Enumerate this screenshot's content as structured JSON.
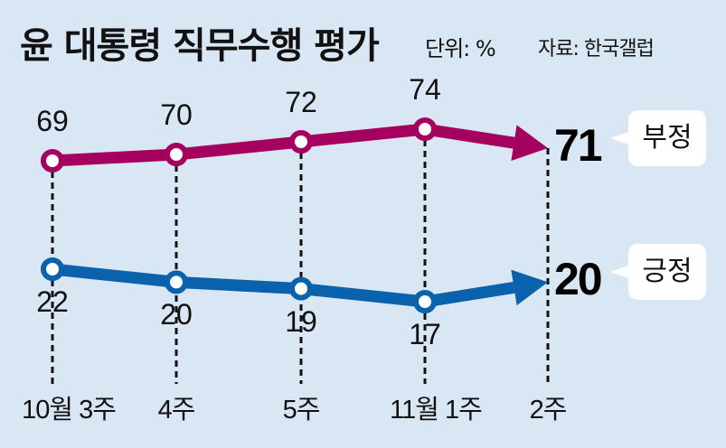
{
  "chart_data": {
    "type": "line",
    "title": "윤 대통령 직무수행 평가",
    "unit": "단위: %",
    "source": "자료: 한국갤럽",
    "categories": [
      "10월 3주",
      "4주",
      "5주",
      "11월 1주",
      "2주"
    ],
    "series": [
      {
        "name": "부정",
        "values": [
          69,
          70,
          72,
          74,
          71
        ],
        "color": "#a6005f"
      },
      {
        "name": "긍정",
        "values": [
          22,
          20,
          19,
          17,
          20
        ],
        "color": "#0a62ad"
      }
    ],
    "grid": false,
    "legend": "right"
  }
}
